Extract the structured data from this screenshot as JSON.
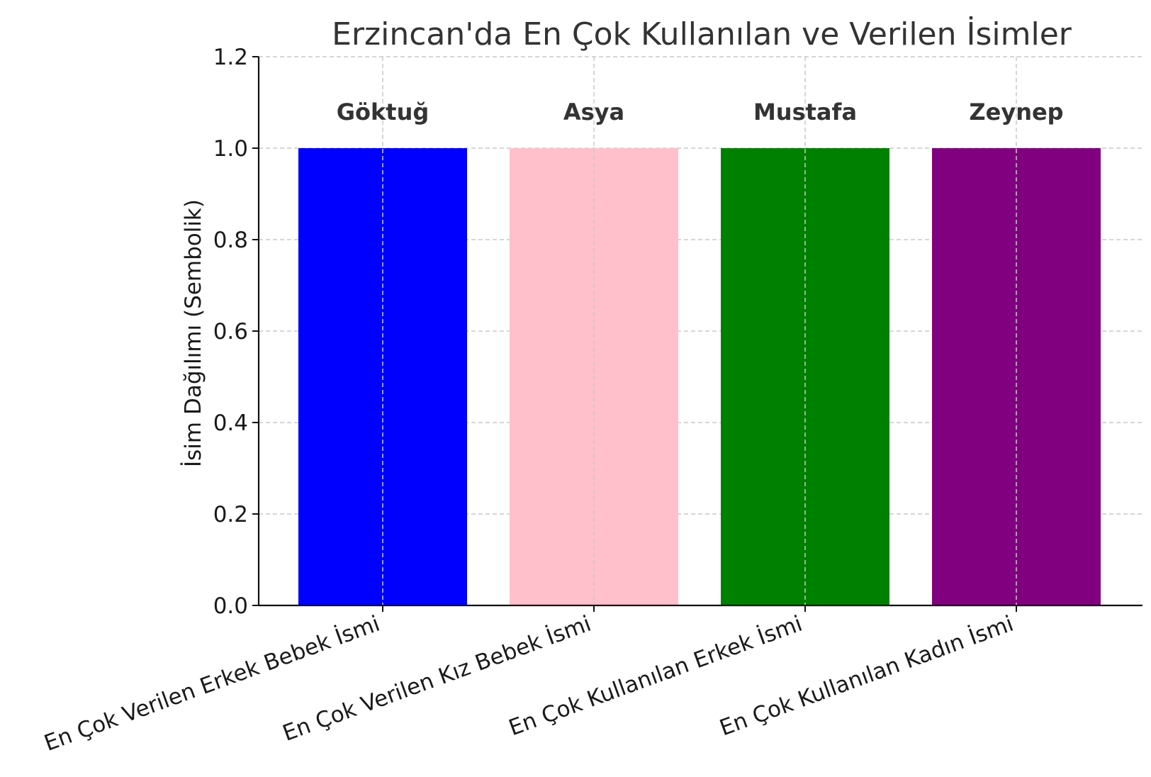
{
  "chart_data": {
    "type": "bar",
    "title": "Erzincan'da En Çok Kullanılan ve Verilen İsimler",
    "xlabel": "",
    "ylabel": "İsim Dağılımı (Sembolik)",
    "categories": [
      "En Çok Verilen Erkek Bebek İsmi",
      "En Çok Verilen Kız Bebek İsmi",
      "En Çok Kullanılan Erkek İsmi",
      "En Çok Kullanılan Kadın İsmi"
    ],
    "values": [
      1.0,
      1.0,
      1.0,
      1.0
    ],
    "bar_labels": [
      "Göktuğ",
      "Asya",
      "Mustafa",
      "Zeynep"
    ],
    "colors": [
      "#0000ff",
      "#ffc0cb",
      "#008000",
      "#800080"
    ],
    "ylim": [
      0,
      1.2
    ],
    "yticks": [
      0.0,
      0.2,
      0.4,
      0.6,
      0.8,
      1.0,
      1.2
    ],
    "ytick_labels": [
      "0.0",
      "0.2",
      "0.4",
      "0.6",
      "0.8",
      "1.0",
      "1.2"
    ],
    "grid": true,
    "legend": "none"
  }
}
